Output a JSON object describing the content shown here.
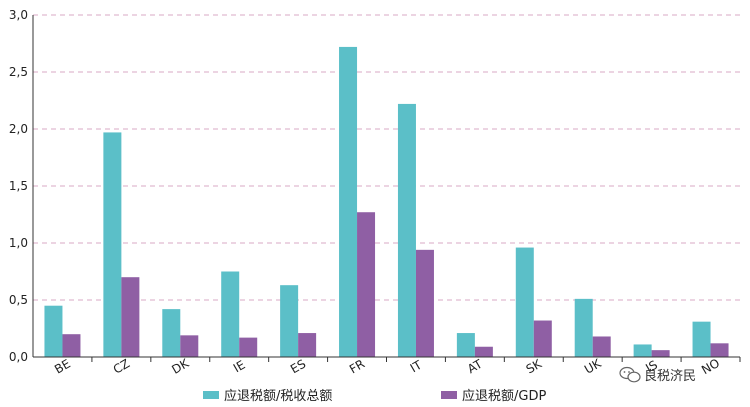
{
  "colors": {
    "series1": "#5bbfc8",
    "series2": "#8f5fa4",
    "grid": "#d9a9c4",
    "axis": "#333333"
  },
  "watermark": {
    "text": "良税济民",
    "icon": "wechat-icon"
  },
  "chart_data": {
    "type": "bar",
    "categories": [
      "BE",
      "CZ",
      "DK",
      "IE",
      "ES",
      "FR",
      "IT",
      "AT",
      "SK",
      "UK",
      "IS",
      "NO"
    ],
    "series": [
      {
        "name": "应退税额/税收总额",
        "values": [
          0.45,
          1.97,
          0.42,
          0.75,
          0.63,
          2.72,
          2.22,
          0.21,
          0.96,
          0.51,
          0.11,
          0.31
        ]
      },
      {
        "name": "应退税额/GDP",
        "values": [
          0.2,
          0.7,
          0.19,
          0.17,
          0.21,
          1.27,
          0.94,
          0.09,
          0.32,
          0.18,
          0.06,
          0.12
        ]
      }
    ],
    "yticks": [
      "0,0",
      "0,5",
      "1,0",
      "1,5",
      "2,0",
      "2,5",
      "3,0"
    ],
    "ylim": [
      0,
      3.0
    ],
    "grid": true,
    "legend_position": "bottom"
  }
}
